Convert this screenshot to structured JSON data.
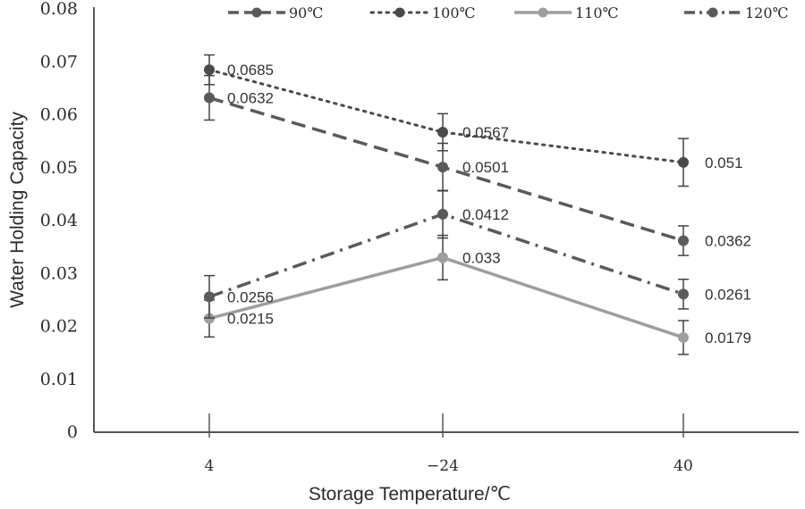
{
  "chart_data": {
    "type": "line",
    "xlabel": "Storage Temperature/℃",
    "ylabel": "Water Holding Capacity",
    "categories": [
      "4",
      "−24",
      "40"
    ],
    "ylim": [
      0,
      0.08
    ],
    "yticks": [
      "0",
      "0.01",
      "0.02",
      "0.03",
      "0.04",
      "0.05",
      "0.06",
      "0.07",
      "0.08"
    ],
    "grid": false,
    "legend_position": "top",
    "error_bars": true,
    "series": [
      {
        "name": "90℃",
        "values": [
          0.0632,
          0.0501,
          0.0362
        ],
        "labels": [
          "0.0632",
          "0.0501",
          "0.0362"
        ],
        "errors": [
          0.0042,
          0.0045,
          0.0028
        ],
        "style": "dashed",
        "color": "#5a5a5a"
      },
      {
        "name": "100℃",
        "values": [
          0.0685,
          0.0567,
          0.051
        ],
        "labels": [
          "0.0685",
          "0.0567",
          "0.051"
        ],
        "errors": [
          0.0028,
          0.0035,
          0.0045
        ],
        "style": "dotted",
        "color": "#4a4a4a"
      },
      {
        "name": "110℃",
        "values": [
          0.0215,
          0.033,
          0.0179
        ],
        "labels": [
          "0.0215",
          "0.033",
          "0.0179"
        ],
        "errors": [
          0.0035,
          0.0042,
          0.0032
        ],
        "style": "solid",
        "color": "#9e9e9e"
      },
      {
        "name": "120℃",
        "values": [
          0.0256,
          0.0412,
          0.0261
        ],
        "labels": [
          "0.0256",
          "0.0412",
          "0.0261"
        ],
        "errors": [
          0.004,
          0.0045,
          0.0028
        ],
        "style": "dashdot",
        "color": "#5a5a5a"
      }
    ]
  }
}
